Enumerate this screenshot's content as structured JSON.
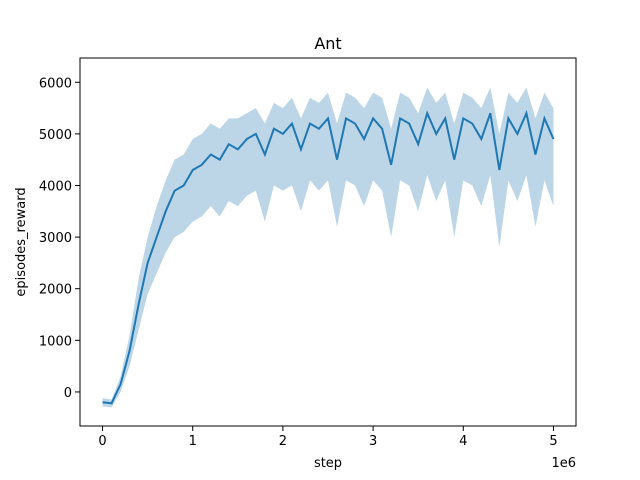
{
  "chart_data": {
    "type": "line",
    "title": "Ant",
    "xlabel": "step",
    "ylabel": "episodes_reward",
    "x_offset_label": "1e6",
    "color": "#1f77b4",
    "band_color": "#a6c8e0",
    "x": [
      0,
      100000,
      200000,
      300000,
      400000,
      500000,
      600000,
      700000,
      800000,
      900000,
      1000000,
      1100000,
      1200000,
      1300000,
      1400000,
      1500000,
      1600000,
      1700000,
      1800000,
      1900000,
      2000000,
      2100000,
      2200000,
      2300000,
      2400000,
      2500000,
      2600000,
      2700000,
      2800000,
      2900000,
      3000000,
      3100000,
      3200000,
      3300000,
      3400000,
      3500000,
      3600000,
      3700000,
      3800000,
      3900000,
      4000000,
      4100000,
      4200000,
      4300000,
      4400000,
      4500000,
      4600000,
      4700000,
      4800000,
      4900000,
      5000000
    ],
    "values": [
      -200,
      -220,
      150,
      800,
      1700,
      2500,
      3000,
      3500,
      3900,
      4000,
      4300,
      4400,
      4600,
      4500,
      4800,
      4700,
      4900,
      5000,
      4600,
      5100,
      5000,
      5200,
      4700,
      5200,
      5100,
      5300,
      4500,
      5300,
      5200,
      4900,
      5300,
      5100,
      4400,
      5300,
      5200,
      4800,
      5400,
      5000,
      5300,
      4500,
      5300,
      5200,
      4900,
      5400,
      4300,
      5300,
      5000,
      5400,
      4600,
      5300,
      4900
    ],
    "band_lower": [
      -280,
      -300,
      0,
      500,
      1200,
      1900,
      2300,
      2700,
      3000,
      3100,
      3300,
      3400,
      3600,
      3400,
      3700,
      3600,
      3800,
      3900,
      3300,
      4000,
      3900,
      4000,
      3500,
      4100,
      3900,
      4100,
      3200,
      4100,
      4000,
      3600,
      4100,
      3900,
      3000,
      4100,
      4000,
      3500,
      4200,
      3700,
      4100,
      3000,
      4100,
      4000,
      3600,
      4200,
      2800,
      4100,
      3700,
      4200,
      3200,
      4100,
      3600
    ],
    "band_upper": [
      -120,
      -150,
      300,
      1100,
      2200,
      3000,
      3600,
      4100,
      4500,
      4600,
      4900,
      5000,
      5200,
      5100,
      5300,
      5300,
      5400,
      5500,
      5200,
      5600,
      5500,
      5700,
      5300,
      5700,
      5600,
      5800,
      5200,
      5800,
      5700,
      5500,
      5800,
      5700,
      5100,
      5800,
      5700,
      5400,
      5900,
      5600,
      5800,
      5200,
      5800,
      5700,
      5500,
      5900,
      5000,
      5800,
      5600,
      5900,
      5300,
      5800,
      5500
    ],
    "xlim": [
      -250000,
      5250000
    ],
    "ylim": [
      -660,
      6470
    ],
    "xticks": [
      0,
      {
        "value": 1000000,
        "label": "1"
      },
      {
        "value": 2000000,
        "label": "2"
      },
      {
        "value": 3000000,
        "label": "3"
      },
      {
        "value": 4000000,
        "label": "4"
      },
      {
        "value": 5000000,
        "label": "5"
      }
    ],
    "yticks": [
      0,
      1000,
      2000,
      3000,
      4000,
      5000,
      6000
    ]
  }
}
